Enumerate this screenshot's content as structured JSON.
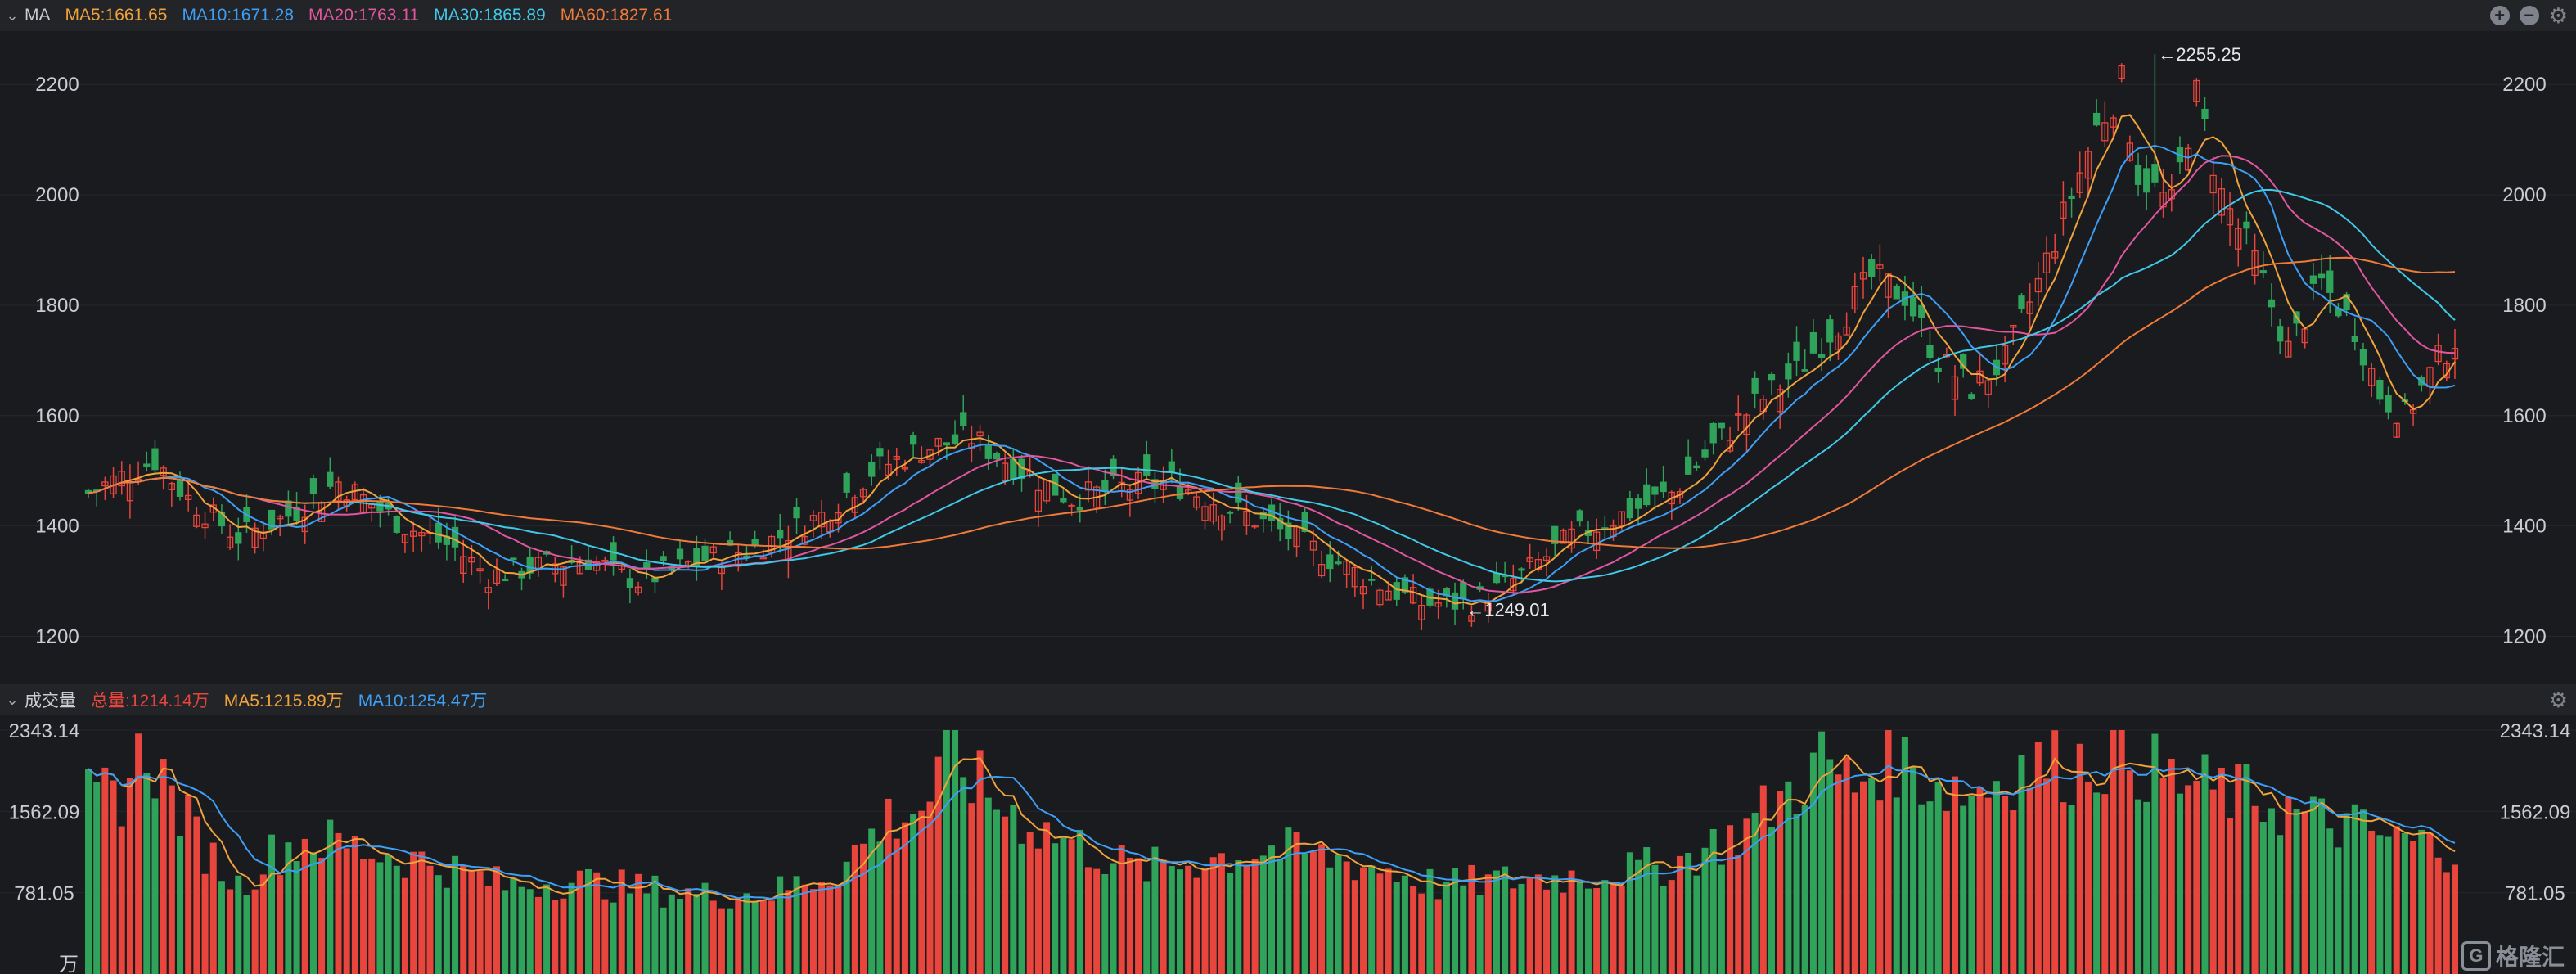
{
  "header": {
    "label": "MA",
    "items": [
      {
        "text": "MA5:1661.65",
        "color": "#f0a23b"
      },
      {
        "text": "MA10:1671.28",
        "color": "#3d9ff5"
      },
      {
        "text": "MA20:1763.11",
        "color": "#e0569f"
      },
      {
        "text": "MA30:1865.89",
        "color": "#40c8e8"
      },
      {
        "text": "MA60:1827.61",
        "color": "#f07a3a"
      }
    ]
  },
  "volume_header": {
    "label": "成交量",
    "items": [
      {
        "text": "总量:1214.14万",
        "color": "#e8453c"
      },
      {
        "text": "MA5:1215.89万",
        "color": "#f0a23b"
      },
      {
        "text": "MA10:1254.47万",
        "color": "#3d9ff5"
      }
    ]
  },
  "watermark": {
    "logo": "G",
    "text": "格隆汇"
  },
  "chart_data": [
    {
      "type": "candlestick",
      "ylim": [
        1140,
        2270
      ],
      "yticks": [
        "1200",
        "1400",
        "1600",
        "1800",
        "2000",
        "2200"
      ],
      "annotations": [
        {
          "text": "←2255.25",
          "value": 2255.25
        },
        {
          "text": "←1249.01",
          "value": 1249.01
        }
      ],
      "colors": {
        "up": "#e8453c",
        "down": "#2fa35a"
      },
      "series": [
        {
          "name": "MA5",
          "color": "#f0a23b"
        },
        {
          "name": "MA10",
          "color": "#3d9ff5"
        },
        {
          "name": "MA20",
          "color": "#e0569f"
        },
        {
          "name": "MA30",
          "color": "#40c8e8"
        },
        {
          "name": "MA60",
          "color": "#f07a3a"
        }
      ],
      "anchor_closes": [
        [
          0,
          1460
        ],
        [
          8,
          1520
        ],
        [
          12,
          1450
        ],
        [
          18,
          1380
        ],
        [
          24,
          1420
        ],
        [
          30,
          1480
        ],
        [
          38,
          1400
        ],
        [
          44,
          1360
        ],
        [
          48,
          1310
        ],
        [
          55,
          1330
        ],
        [
          60,
          1340
        ],
        [
          66,
          1300
        ],
        [
          74,
          1340
        ],
        [
          80,
          1360
        ],
        [
          88,
          1420
        ],
        [
          94,
          1500
        ],
        [
          100,
          1540
        ],
        [
          106,
          1560
        ],
        [
          112,
          1500
        ],
        [
          118,
          1450
        ],
        [
          124,
          1470
        ],
        [
          130,
          1480
        ],
        [
          136,
          1440
        ],
        [
          142,
          1400
        ],
        [
          148,
          1350
        ],
        [
          154,
          1300
        ],
        [
          160,
          1260
        ],
        [
          166,
          1260
        ],
        [
          172,
          1310
        ],
        [
          178,
          1380
        ],
        [
          184,
          1420
        ],
        [
          190,
          1460
        ],
        [
          196,
          1560
        ],
        [
          200,
          1620
        ],
        [
          205,
          1680
        ],
        [
          210,
          1770
        ],
        [
          214,
          1850
        ],
        [
          218,
          1820
        ],
        [
          222,
          1700
        ],
        [
          226,
          1650
        ],
        [
          230,
          1700
        ],
        [
          234,
          1840
        ],
        [
          238,
          2000
        ],
        [
          241,
          2120
        ],
        [
          244,
          2200
        ],
        [
          246,
          2040
        ],
        [
          250,
          1980
        ],
        [
          253,
          2180
        ],
        [
          256,
          2000
        ],
        [
          260,
          1880
        ],
        [
          264,
          1720
        ],
        [
          268,
          1840
        ],
        [
          272,
          1760
        ],
        [
          275,
          1640
        ],
        [
          278,
          1600
        ],
        [
          282,
          1700
        ],
        [
          284,
          1740
        ]
      ]
    },
    {
      "type": "bar",
      "title": "成交量",
      "unit": "万",
      "ylim": [
        0,
        2343.14
      ],
      "yticks": [
        "781.05",
        "1562.09",
        "2343.14"
      ],
      "series": [
        {
          "name": "MA5",
          "color": "#f0a23b"
        },
        {
          "name": "MA10",
          "color": "#3d9ff5"
        }
      ],
      "anchor_volumes": [
        [
          0,
          1650
        ],
        [
          4,
          1750
        ],
        [
          7,
          2200
        ],
        [
          10,
          1700
        ],
        [
          14,
          1200
        ],
        [
          18,
          850
        ],
        [
          22,
          1150
        ],
        [
          26,
          1300
        ],
        [
          30,
          1250
        ],
        [
          36,
          1150
        ],
        [
          42,
          1050
        ],
        [
          50,
          850
        ],
        [
          58,
          900
        ],
        [
          66,
          820
        ],
        [
          74,
          760
        ],
        [
          82,
          780
        ],
        [
          90,
          1000
        ],
        [
          96,
          1500
        ],
        [
          100,
          1600
        ],
        [
          104,
          2100
        ],
        [
          108,
          1700
        ],
        [
          114,
          1400
        ],
        [
          120,
          1200
        ],
        [
          126,
          1000
        ],
        [
          134,
          1100
        ],
        [
          142,
          1200
        ],
        [
          150,
          1100
        ],
        [
          156,
          1000
        ],
        [
          162,
          850
        ],
        [
          170,
          900
        ],
        [
          180,
          950
        ],
        [
          190,
          1050
        ],
        [
          198,
          1350
        ],
        [
          204,
          1750
        ],
        [
          208,
          2050
        ],
        [
          212,
          1800
        ],
        [
          216,
          2150
        ],
        [
          220,
          1900
        ],
        [
          226,
          1750
        ],
        [
          232,
          2000
        ],
        [
          238,
          2000
        ],
        [
          244,
          2150
        ],
        [
          250,
          1850
        ],
        [
          256,
          1750
        ],
        [
          262,
          1650
        ],
        [
          266,
          1500
        ],
        [
          272,
          1400
        ],
        [
          276,
          1300
        ],
        [
          280,
          1250
        ],
        [
          284,
          1214
        ]
      ]
    }
  ]
}
